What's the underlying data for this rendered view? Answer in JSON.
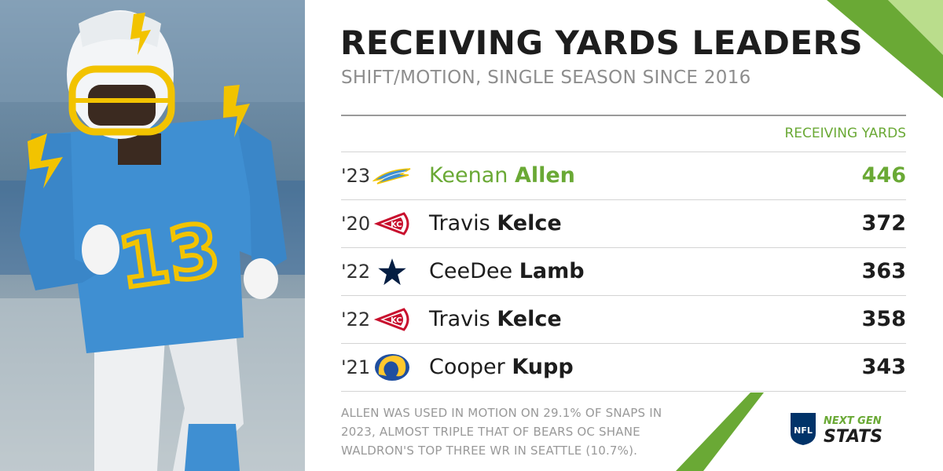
{
  "header": {
    "title": "RECEIVING YARDS LEADERS",
    "subtitle": "SHIFT/MOTION, SINGLE SEASON SINCE 2016"
  },
  "table": {
    "column_header": "RECEIVING YARDS",
    "rows": [
      {
        "year": "'23",
        "team_logo": "chargers-bolt-logo",
        "first_name": "Keenan",
        "last_name": "Allen",
        "yards": "446",
        "highlight": true
      },
      {
        "year": "'20",
        "team_logo": "chiefs-arrowhead-logo",
        "first_name": "Travis",
        "last_name": "Kelce",
        "yards": "372",
        "highlight": false
      },
      {
        "year": "'22",
        "team_logo": "cowboys-star-logo",
        "first_name": "CeeDee",
        "last_name": "Lamb",
        "yards": "363",
        "highlight": false
      },
      {
        "year": "'22",
        "team_logo": "chiefs-arrowhead-logo",
        "first_name": "Travis",
        "last_name": "Kelce",
        "yards": "358",
        "highlight": false
      },
      {
        "year": "'21",
        "team_logo": "rams-horn-logo",
        "first_name": "Cooper",
        "last_name": "Kupp",
        "yards": "343",
        "highlight": false
      }
    ]
  },
  "footnote": "ALLEN WAS USED IN MOTION ON 29.1% OF SNAPS IN 2023, ALMOST TRIPLE THAT OF BEARS OC SHANE WALDRON'S TOP THREE WR IN SEATTLE (10.7%).",
  "branding": {
    "nfl_shield": "NFL",
    "ngs_line1": "NEXT GEN",
    "ngs_line2": "STATS"
  },
  "photo": {
    "jersey_number": "13"
  },
  "colors": {
    "accent_green": "#6aa935",
    "chargers_powder_blue": "#3f8fd2",
    "chargers_gold": "#f2c300",
    "chiefs_red": "#c8102e",
    "cowboys_navy": "#041e42",
    "rams_blue": "#1f4fa0",
    "rams_gold": "#ffc82e"
  }
}
